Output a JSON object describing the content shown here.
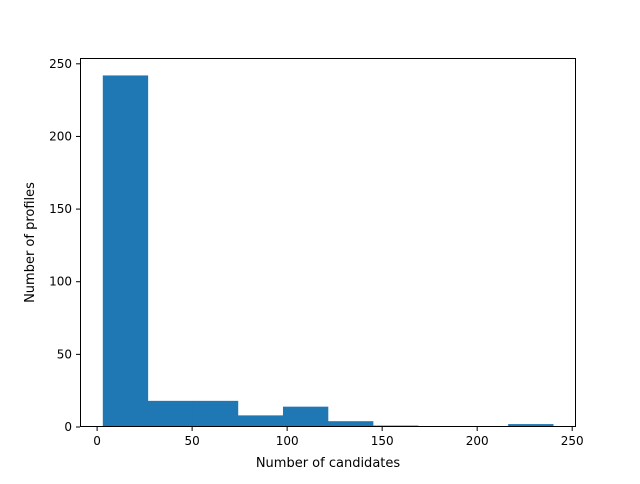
{
  "chart_data": {
    "type": "bar",
    "title": "",
    "xlabel": "Number of candidates",
    "ylabel": "Number of profiles",
    "xlim": [
      -9,
      252
    ],
    "ylim": [
      0,
      254
    ],
    "xticks": [
      0,
      50,
      100,
      150,
      200,
      250
    ],
    "yticks": [
      0,
      50,
      100,
      150,
      200,
      250
    ],
    "grid": false,
    "legend": "none",
    "bar_color": "#1f77b4",
    "bins": [
      {
        "x0": 3,
        "x1": 26.7,
        "count": 242
      },
      {
        "x0": 26.7,
        "x1": 50.4,
        "count": 18
      },
      {
        "x0": 50.4,
        "x1": 74.1,
        "count": 18
      },
      {
        "x0": 74.1,
        "x1": 97.8,
        "count": 8
      },
      {
        "x0": 97.8,
        "x1": 121.5,
        "count": 14
      },
      {
        "x0": 121.5,
        "x1": 145.2,
        "count": 4
      },
      {
        "x0": 145.2,
        "x1": 168.9,
        "count": 1
      },
      {
        "x0": 168.9,
        "x1": 192.6,
        "count": 0
      },
      {
        "x0": 192.6,
        "x1": 216.3,
        "count": 0
      },
      {
        "x0": 216.3,
        "x1": 240,
        "count": 2
      }
    ]
  }
}
